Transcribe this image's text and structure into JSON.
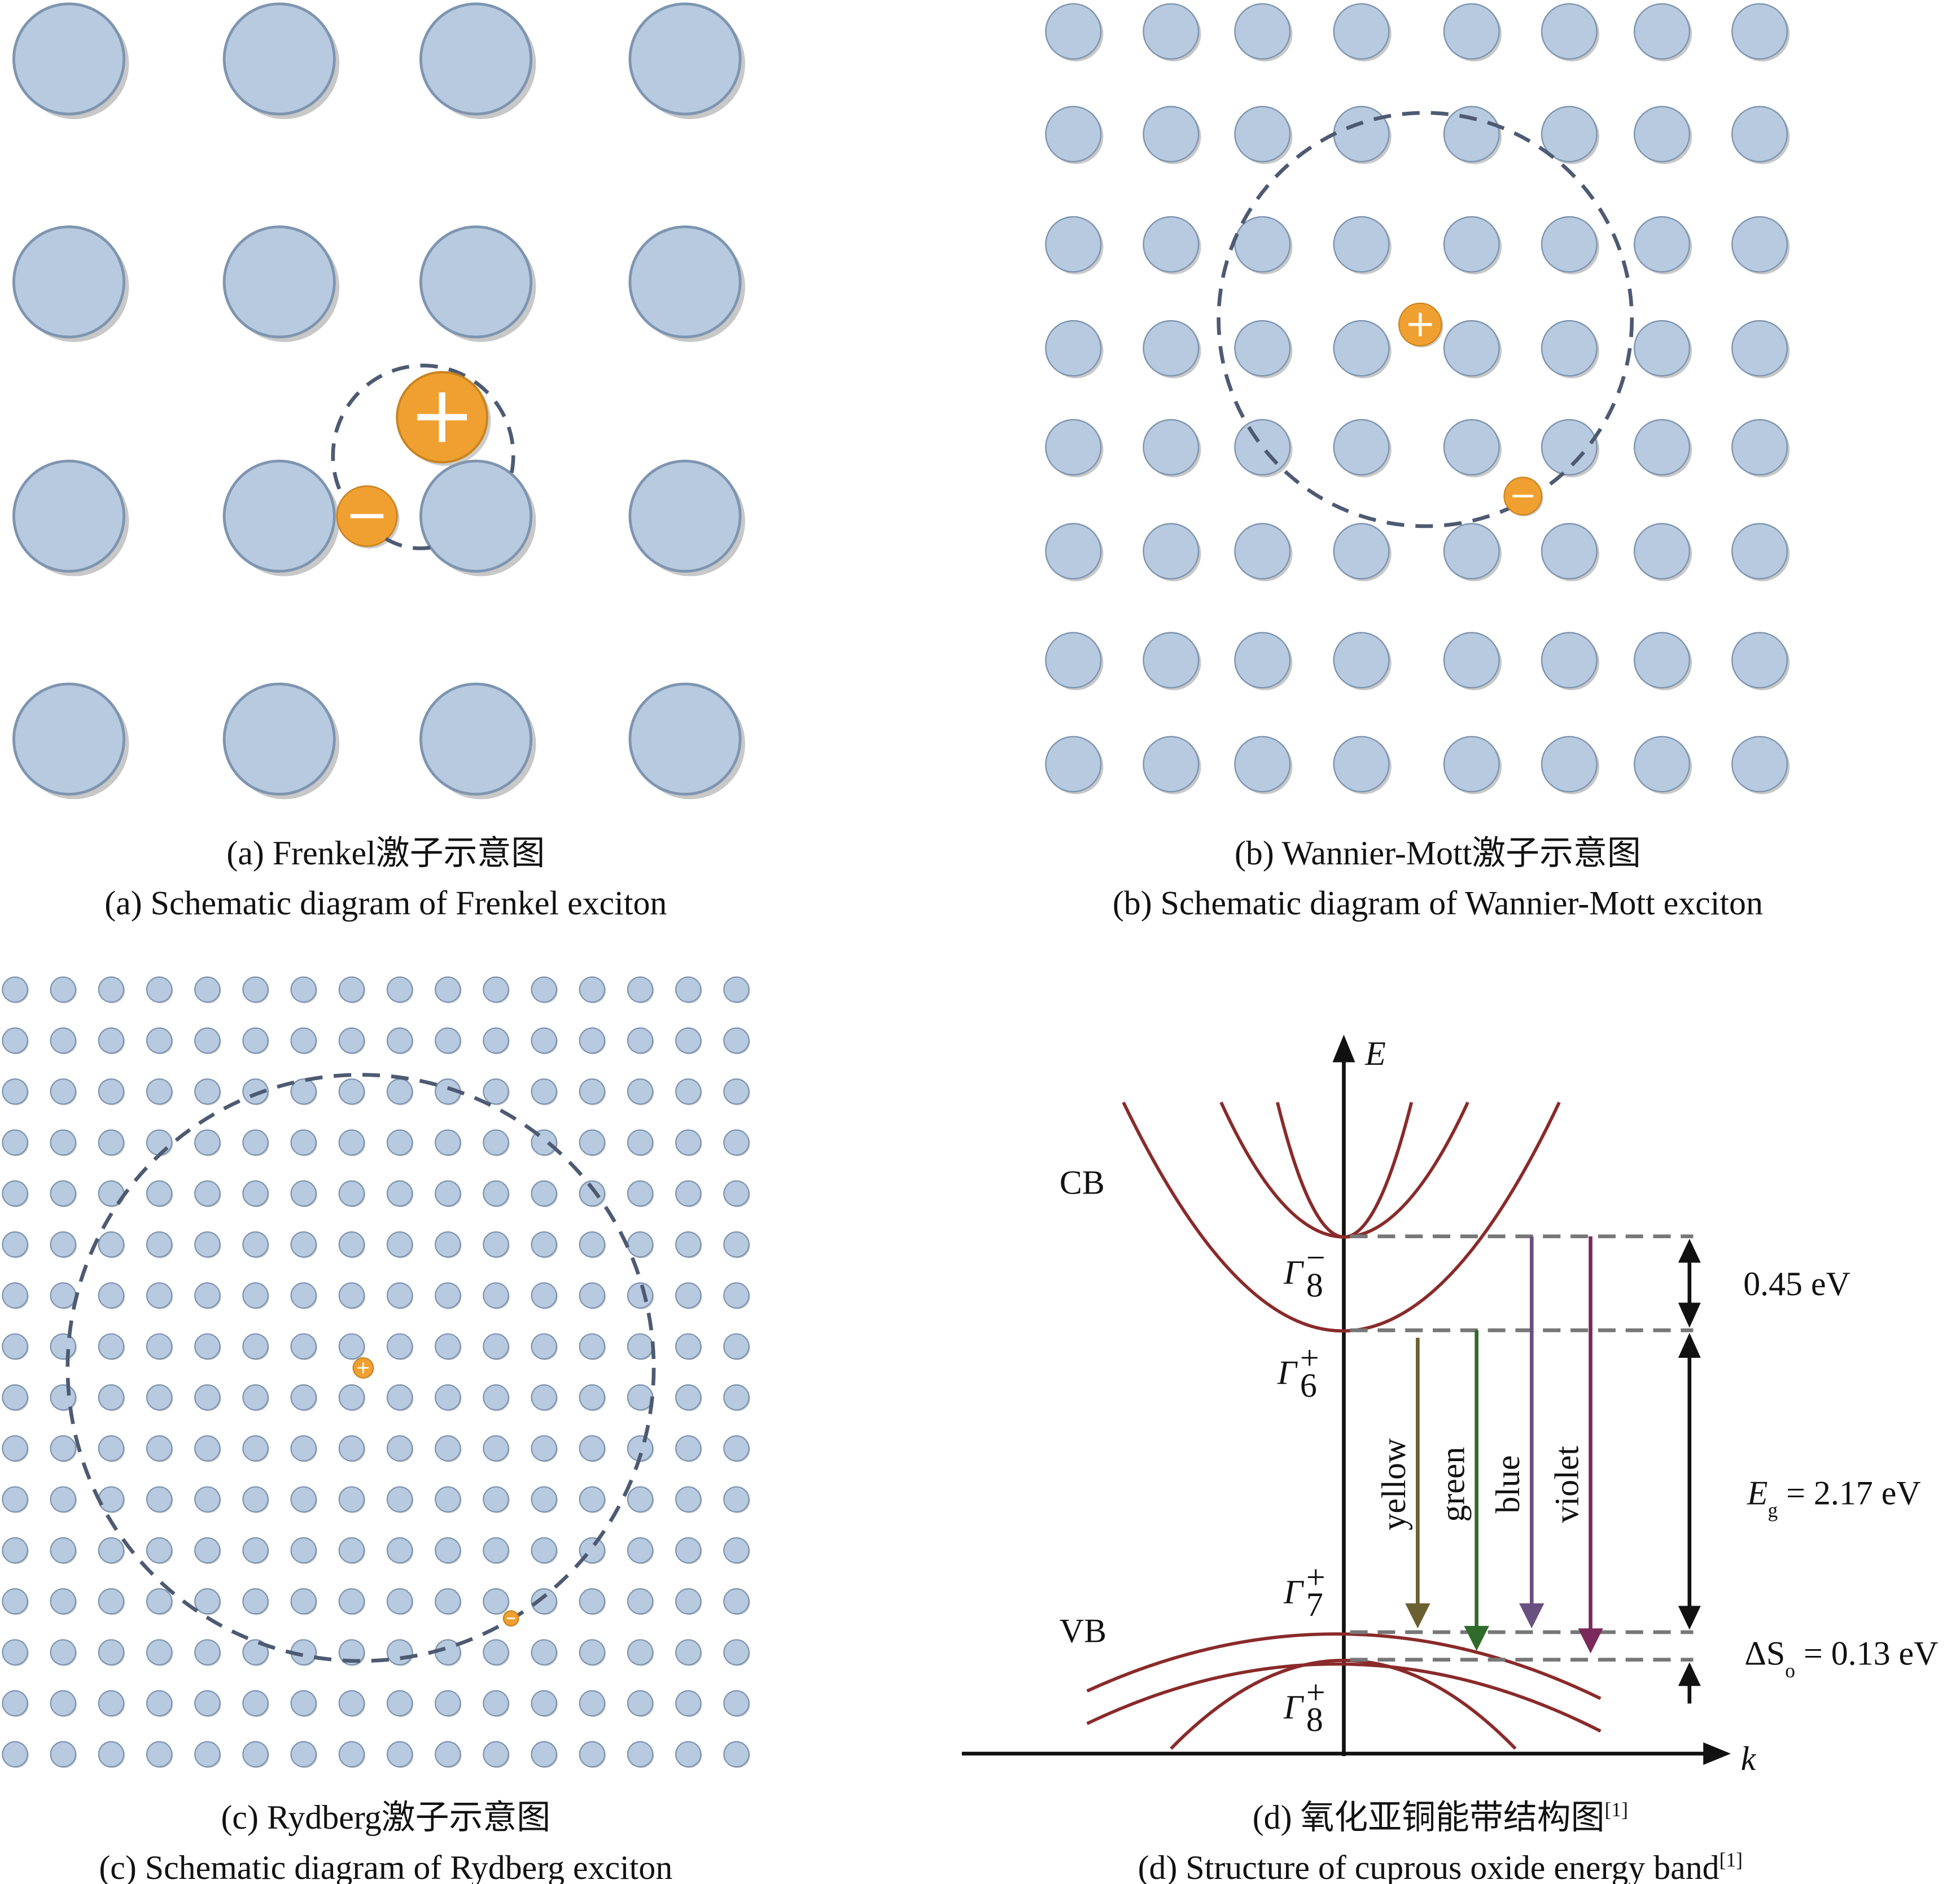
{
  "panels": {
    "a": {
      "caption_cn": "(a) Frenkel激子示意图",
      "caption_en": "(a) Schematic diagram of Frenkel exciton",
      "grid": [
        4,
        4
      ]
    },
    "b": {
      "caption_cn": "(b) Wannier-Mott激子示意图",
      "caption_en": "(b) Schematic diagram of Wannier-Mott exciton",
      "grid": [
        8,
        8
      ]
    },
    "c": {
      "caption_cn": "(c) Rydberg激子示意图",
      "caption_en": "(c) Schematic diagram of Rydberg exciton",
      "grid": [
        16,
        16
      ]
    },
    "d": {
      "caption_cn": "(d) 氧化亚铜能带结构图",
      "caption_en": "(d) Structure of cuprous oxide energy band",
      "ref": "[1]",
      "axis_e": "E",
      "axis_k": "k",
      "cb": "CB",
      "vb": "VB",
      "gamma_symbol": "Γ",
      "gammas": [
        {
          "sub": "8",
          "sup": "−"
        },
        {
          "sub": "6",
          "sup": "+"
        },
        {
          "sub": "7",
          "sup": "+"
        },
        {
          "sub": "8",
          "sup": "+"
        }
      ],
      "gap1": "0.45 eV",
      "eg_symbol": "E",
      "eg_sub": "g",
      "eg_value": " = 2.17 eV",
      "so_symbol": "ΔS",
      "so_sub": "o",
      "so_value": " = 0.13 eV",
      "transitions": [
        {
          "label": "yellow",
          "color": "#6b6030"
        },
        {
          "label": "green",
          "color": "#2f6b2a"
        },
        {
          "label": "blue",
          "color": "#6a5080"
        },
        {
          "label": "violet",
          "color": "#7a2a5a"
        }
      ]
    }
  },
  "colors": {
    "atom": "#b7cadf",
    "atom_stroke": "#7e95b0",
    "charge": "#f0a030",
    "band": "#8a2a2a"
  },
  "charges": {
    "plus": "+",
    "minus": "−"
  }
}
